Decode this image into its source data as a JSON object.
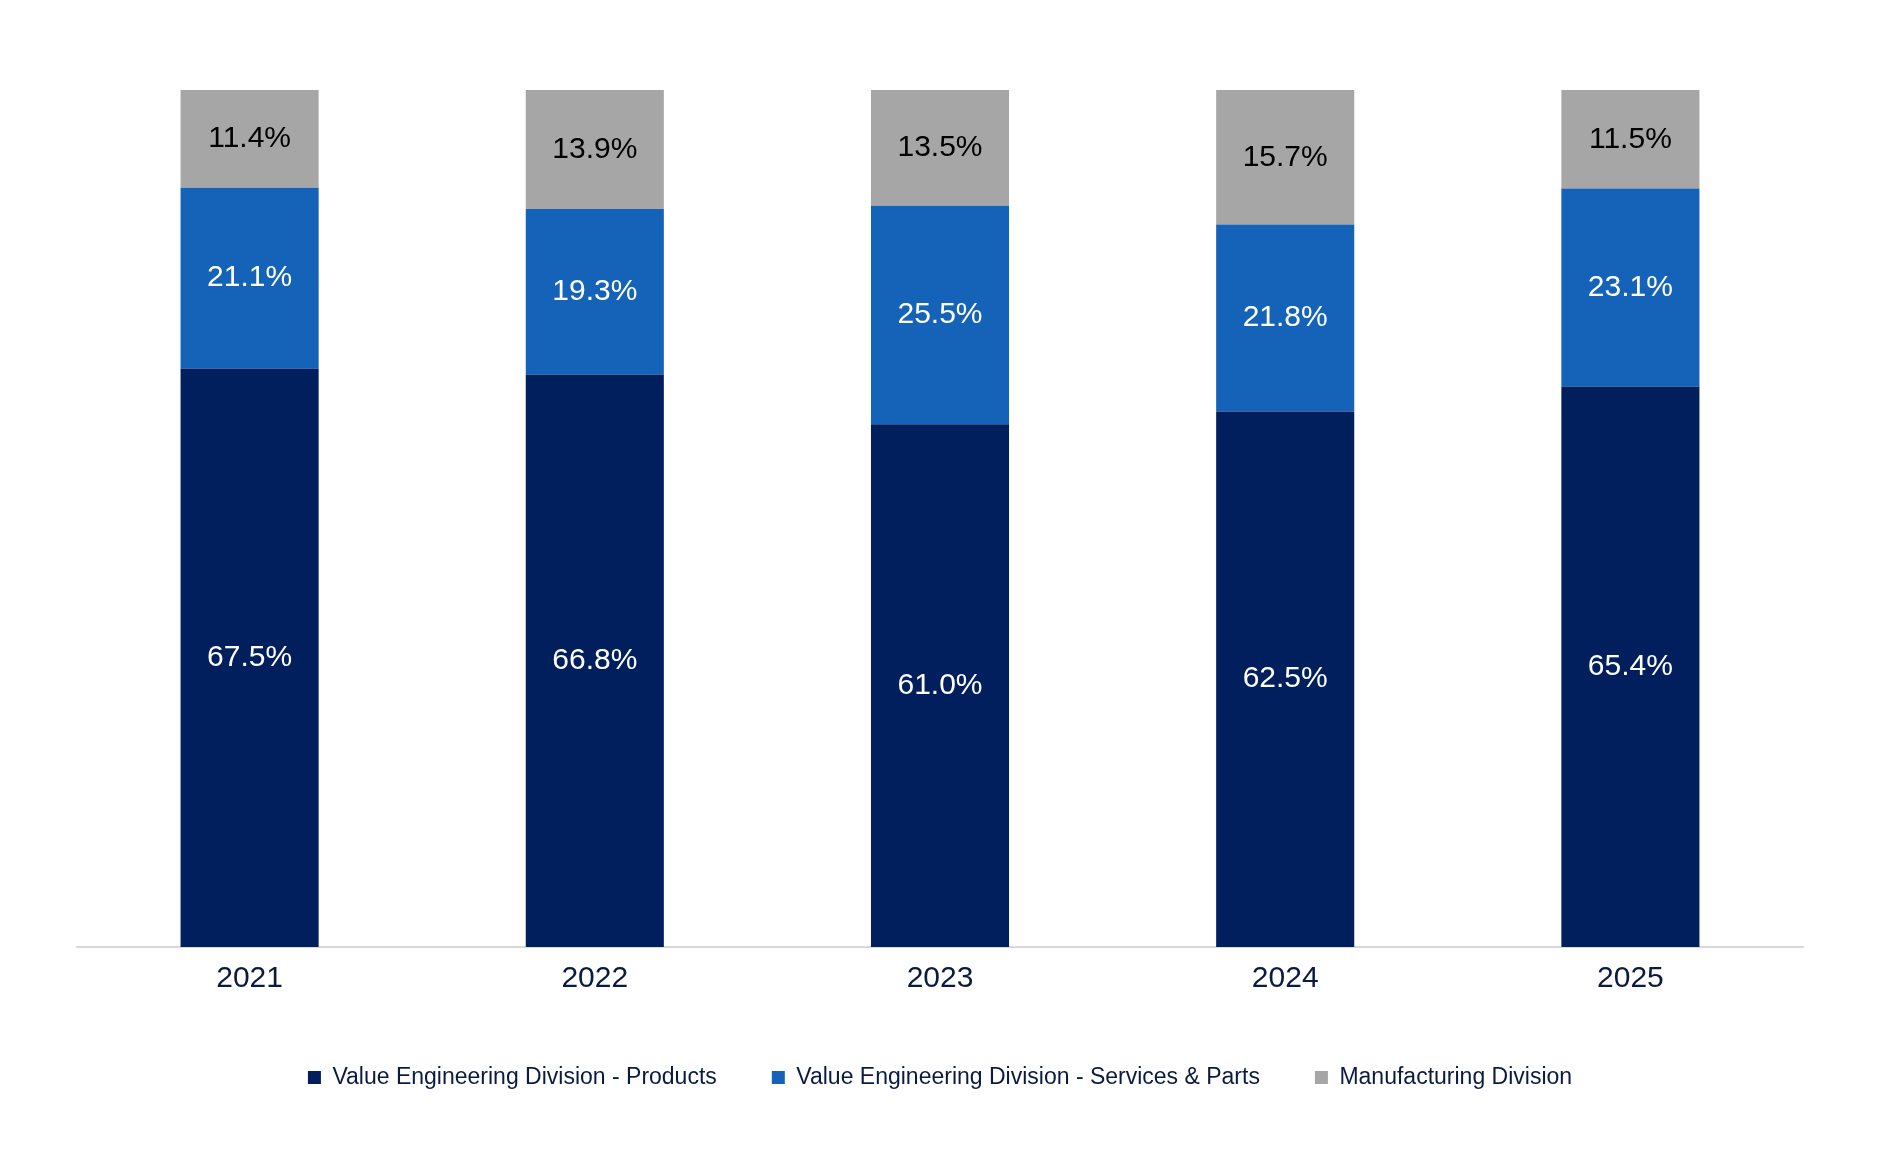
{
  "chart_data": {
    "type": "bar",
    "stacked": true,
    "categories": [
      "2021",
      "2022",
      "2023",
      "2024",
      "2025"
    ],
    "legend": "bottom",
    "grid": false,
    "series": [
      {
        "name": "Value Engineering Division - Products",
        "color": "#001f5c",
        "values": [
          67.5,
          66.8,
          61.0,
          62.5,
          65.4
        ],
        "value_labels": [
          "67.5%",
          "66.8%",
          "61.0%",
          "62.5%",
          "65.4%"
        ]
      },
      {
        "name": "Value Engineering Division - Services & Parts",
        "color": "#1563b8",
        "values": [
          21.1,
          19.3,
          25.5,
          21.8,
          23.1
        ],
        "value_labels": [
          "21.1%",
          "19.3%",
          "25.5%",
          "21.8%",
          "23.1%"
        ]
      },
      {
        "name": "Manufacturing Division",
        "color": "#a6a6a6",
        "values": [
          11.4,
          13.9,
          13.5,
          15.7,
          11.5
        ],
        "value_labels": [
          "11.4%",
          "13.9%",
          "13.5%",
          "15.7%",
          "11.5%"
        ]
      }
    ]
  }
}
